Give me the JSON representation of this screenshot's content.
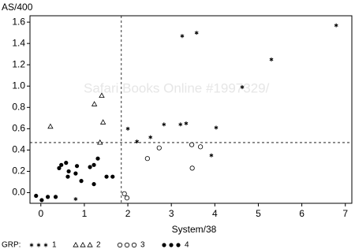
{
  "chart_data": {
    "type": "scatter",
    "x_label": "System/38",
    "y_label": "AS/400",
    "watermark": "Safari Books Online #1997329/",
    "legend_title": "GRP:",
    "xlim": [
      -0.25,
      7.15
    ],
    "ylim": [
      -0.1,
      1.66
    ],
    "xticks": [
      0,
      1,
      2,
      3,
      4,
      5,
      6,
      7
    ],
    "yticks": [
      {
        "value": 0,
        "label": "0.0"
      },
      0.2,
      0.4,
      0.6,
      0.8,
      {
        "value": 1,
        "label": "1.0"
      },
      1.2,
      1.4,
      1.6
    ],
    "reference_lines": {
      "x": 1.85,
      "y": 0.47
    },
    "series": [
      {
        "name": "1",
        "marker": "star",
        "color": "#000000",
        "x": [
          3.25,
          3.58,
          6.79,
          5.3,
          4.63,
          2.0,
          2.21,
          2.52,
          2.83,
          3.21,
          3.34,
          4.03,
          3.92,
          0.8
        ],
        "y": [
          1.47,
          1.5,
          1.57,
          1.25,
          0.99,
          0.6,
          0.48,
          0.52,
          0.64,
          0.64,
          0.65,
          0.61,
          0.35,
          -0.06
        ]
      },
      {
        "name": "2",
        "marker": "triangle",
        "color": "#000000",
        "x": [
          0.22,
          1.23,
          1.4,
          1.43,
          1.36
        ],
        "y": [
          0.62,
          0.83,
          0.91,
          0.66,
          0.47
        ]
      },
      {
        "name": "3",
        "marker": "circle-open",
        "color": "#000000",
        "x": [
          2.45,
          2.72,
          3.47,
          3.67,
          3.48,
          1.92,
          1.98
        ],
        "y": [
          0.32,
          0.42,
          0.45,
          0.43,
          0.23,
          -0.01,
          -0.05
        ]
      },
      {
        "name": "4",
        "marker": "circle",
        "color": "#000000",
        "x": [
          -0.11,
          0.02,
          0.16,
          0.34,
          0.42,
          0.47,
          0.58,
          0.62,
          0.64,
          0.8,
          0.83,
          0.93,
          1.13,
          1.22,
          1.31,
          1.22,
          1.51,
          1.65
        ],
        "y": [
          -0.03,
          -0.07,
          -0.04,
          -0.04,
          0.23,
          0.26,
          0.28,
          0.15,
          0.2,
          0.18,
          0.25,
          0.11,
          0.24,
          0.26,
          0.32,
          0.08,
          0.15,
          0.15
        ]
      }
    ]
  }
}
